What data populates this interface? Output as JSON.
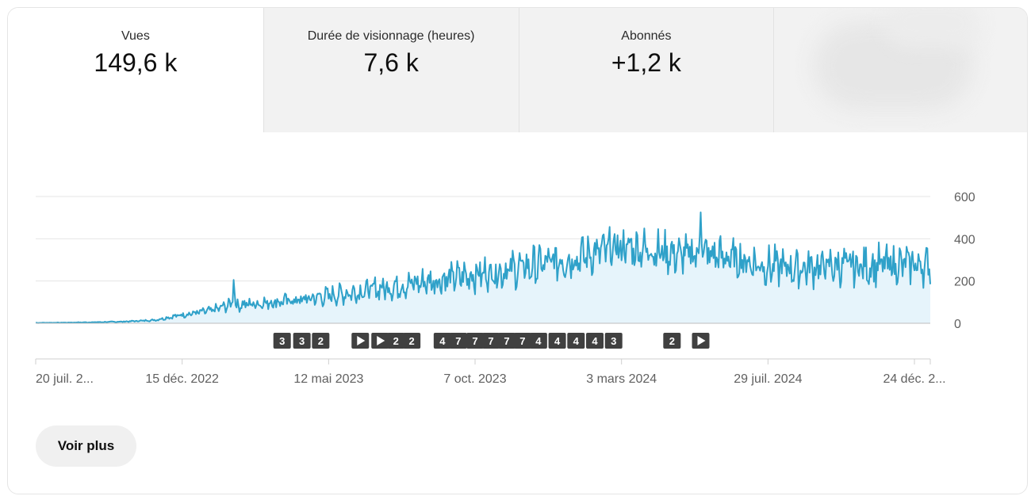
{
  "metrics": [
    {
      "label": "Vues",
      "value": "149,6 k"
    },
    {
      "label": "Durée de visionnage (heures)",
      "value": "7,6 k"
    },
    {
      "label": "Abonnés",
      "value": "+1,2 k"
    }
  ],
  "voir_plus": "Voir plus",
  "colors": {
    "line": "#2fa1c9",
    "area": "#e6f4fb",
    "grid": "#e5e5e5",
    "marker": "#404040"
  },
  "chart_data": {
    "type": "area",
    "y_axis_position": "right",
    "ylim": [
      0,
      600
    ],
    "y_ticks": [
      0,
      200,
      400,
      600
    ],
    "y_tick_labels": [
      "0",
      "200",
      "400",
      "600"
    ],
    "xlim": [
      "2022-07-20",
      "2025-01-09"
    ],
    "x_ticks": [
      "2022-07-20",
      "2022-12-15",
      "2023-05-12",
      "2023-10-07",
      "2024-03-03",
      "2024-07-29",
      "2024-12-24"
    ],
    "x_tick_labels": [
      "20 juil. 2...",
      "15 déc. 2022",
      "12 mai 2023",
      "7 oct. 2023",
      "3 mars 2024",
      "29 juil. 2024",
      "24 déc. 2..."
    ],
    "series": [
      {
        "x": [
          "2022-07-20",
          "2022-08-19",
          "2022-09-18",
          "2022-10-18",
          "2022-11-17",
          "2022-12-15",
          "2023-01-14",
          "2023-02-03",
          "2023-02-05",
          "2023-02-07",
          "2023-03-15",
          "2023-04-14",
          "2023-05-12",
          "2023-06-11",
          "2023-07-11",
          "2023-08-10",
          "2023-09-09",
          "2023-10-07",
          "2023-11-06",
          "2023-12-06",
          "2024-01-05",
          "2024-02-04",
          "2024-03-03",
          "2024-04-02",
          "2024-05-02",
          "2024-05-20",
          "2024-05-22",
          "2024-05-24",
          "2024-06-30",
          "2024-07-29",
          "2024-08-28",
          "2024-09-27",
          "2024-10-27",
          "2024-11-26",
          "2024-12-24",
          "2025-01-09"
        ],
        "values": [
          2,
          3,
          5,
          8,
          15,
          40,
          60,
          90,
          205,
          85,
          100,
          110,
          130,
          150,
          170,
          190,
          210,
          230,
          250,
          270,
          300,
          330,
          360,
          350,
          320,
          330,
          525,
          330,
          300,
          270,
          260,
          270,
          270,
          275,
          280,
          270
        ]
      }
    ],
    "markers": [
      {
        "date": "2023-03-26",
        "label": "3"
      },
      {
        "date": "2023-04-15",
        "label": "3"
      },
      {
        "date": "2023-05-04",
        "label": "2"
      },
      {
        "date": "2023-06-13",
        "label": "play"
      },
      {
        "date": "2023-07-03",
        "label": "play"
      },
      {
        "date": "2023-07-19",
        "label": "2"
      },
      {
        "date": "2023-08-04",
        "label": "2"
      },
      {
        "date": "2023-09-04",
        "label": "4"
      },
      {
        "date": "2023-09-20",
        "label": "7"
      },
      {
        "date": "2023-10-07",
        "label": "7"
      },
      {
        "date": "2023-10-23",
        "label": "7"
      },
      {
        "date": "2023-11-08",
        "label": "7"
      },
      {
        "date": "2023-11-24",
        "label": "7"
      },
      {
        "date": "2023-12-10",
        "label": "4"
      },
      {
        "date": "2023-12-29",
        "label": "4"
      },
      {
        "date": "2024-01-17",
        "label": "4"
      },
      {
        "date": "2024-02-05",
        "label": "4"
      },
      {
        "date": "2024-02-24",
        "label": "3"
      },
      {
        "date": "2024-04-23",
        "label": "2"
      },
      {
        "date": "2024-05-22",
        "label": "play"
      }
    ]
  }
}
